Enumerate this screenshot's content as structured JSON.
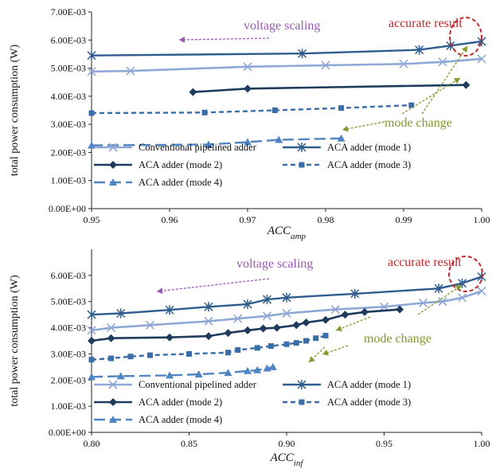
{
  "colors": {
    "conventional": "#8fa8d6",
    "mode1": "#2f5d8e",
    "mode2": "#1e3a5c",
    "mode3": "#3a6ea8",
    "mode4": "#4f85c2",
    "voltage_scaling": "#9b59b6",
    "accurate_result": "#c0282d",
    "mode_change": "#7f9a2e"
  },
  "chart_data": [
    {
      "type": "line",
      "xlabel": "ACC",
      "xlabel_sub": "amp",
      "ylabel": "total power consumption (W)",
      "xlim": [
        0.95,
        1.0
      ],
      "ylim": [
        0,
        0.007
      ],
      "xticks": [
        0.95,
        0.96,
        0.97,
        0.98,
        0.99,
        1.0
      ],
      "xtick_labels": [
        "0.95",
        "0.96",
        "0.97",
        "0.98",
        "0.99",
        "1.00"
      ],
      "yticks": [
        0,
        0.001,
        0.002,
        0.003,
        0.004,
        0.005,
        0.006,
        0.007
      ],
      "ytick_labels": [
        "0.00E+00",
        "1.00E-03",
        "2.00E-03",
        "3.00E-03",
        "4.00E-03",
        "5.00E-03",
        "6.00E-03",
        "7.00E-03"
      ],
      "grid": false,
      "annotations": {
        "voltage_scaling": "voltage scaling",
        "accurate_result": "accurate result",
        "mode_change": "mode change"
      },
      "series": [
        {
          "key": "conventional",
          "name": "Conventional pipelined adder",
          "marker": "x",
          "dash": "solid",
          "x": [
            0.95,
            0.955,
            0.97,
            0.98,
            0.99,
            0.995,
            1.0
          ],
          "y": [
            0.00488,
            0.0049,
            0.00505,
            0.0051,
            0.00515,
            0.00522,
            0.00533
          ]
        },
        {
          "key": "mode1",
          "name": "ACA adder (mode 1)",
          "marker": "star",
          "dash": "solid",
          "x": [
            0.95,
            0.977,
            0.992,
            0.996,
            1.0
          ],
          "y": [
            0.00545,
            0.00552,
            0.00565,
            0.0058,
            0.00595
          ]
        },
        {
          "key": "mode2",
          "name": "ACA adder (mode 2)",
          "marker": "diamond",
          "dash": "solid",
          "x": [
            0.963,
            0.97,
            0.998
          ],
          "y": [
            0.00415,
            0.00427,
            0.0044
          ]
        },
        {
          "key": "mode3",
          "name": "ACA adder (mode 3)",
          "marker": "square",
          "dash": "dash",
          "x": [
            0.95,
            0.9645,
            0.9735,
            0.982,
            0.991
          ],
          "y": [
            0.0034,
            0.00342,
            0.0035,
            0.00358,
            0.00368
          ]
        },
        {
          "key": "mode4",
          "name": "ACA adder (mode 4)",
          "marker": "triangle",
          "dash": "longdash",
          "x": [
            0.95,
            0.965,
            0.97,
            0.974,
            0.982
          ],
          "y": [
            0.00225,
            0.00228,
            0.00237,
            0.00245,
            0.0025
          ]
        }
      ]
    },
    {
      "type": "line",
      "xlabel": "ACC",
      "xlabel_sub": "inf",
      "ylabel": "total power consumption (W)",
      "xlim": [
        0.8,
        1.0
      ],
      "ylim": [
        0,
        0.007
      ],
      "xticks": [
        0.8,
        0.85,
        0.9,
        0.95,
        1.0
      ],
      "xtick_labels": [
        "0.80",
        "0.85",
        "0.90",
        "0.95",
        "1.00"
      ],
      "yticks": [
        0,
        0.001,
        0.002,
        0.003,
        0.004,
        0.005,
        0.006
      ],
      "ytick_labels": [
        "0.00E+00",
        "1.00E-03",
        "2.00E-03",
        "3.00E-03",
        "4.00E-03",
        "5.00E-03",
        "6.00E-03"
      ],
      "grid": false,
      "annotations": {
        "voltage_scaling": "voltage scaling",
        "accurate_result": "accurate result",
        "mode_change": "mode change"
      },
      "series": [
        {
          "key": "conventional",
          "name": "Conventional pipelined adder",
          "marker": "x",
          "dash": "solid",
          "x": [
            0.8,
            0.81,
            0.83,
            0.86,
            0.875,
            0.89,
            0.9,
            0.925,
            0.95,
            0.97,
            0.98,
            0.99,
            1.0
          ],
          "y": [
            0.0039,
            0.004,
            0.0041,
            0.00425,
            0.00435,
            0.00445,
            0.00455,
            0.0047,
            0.0048,
            0.00495,
            0.005,
            0.00515,
            0.0054
          ]
        },
        {
          "key": "mode1",
          "name": "ACA adder (mode 1)",
          "marker": "star",
          "dash": "solid",
          "x": [
            0.8,
            0.815,
            0.84,
            0.86,
            0.88,
            0.89,
            0.9,
            0.935,
            0.978,
            0.99,
            1.0
          ],
          "y": [
            0.0045,
            0.00455,
            0.00468,
            0.0048,
            0.0049,
            0.00508,
            0.00515,
            0.0053,
            0.0055,
            0.0057,
            0.00595
          ]
        },
        {
          "key": "mode2",
          "name": "ACA adder (mode 2)",
          "marker": "diamond",
          "dash": "solid",
          "x": [
            0.8,
            0.81,
            0.84,
            0.86,
            0.87,
            0.88,
            0.888,
            0.895,
            0.905,
            0.91,
            0.92,
            0.93,
            0.94,
            0.958
          ],
          "y": [
            0.0035,
            0.0036,
            0.00363,
            0.00368,
            0.0038,
            0.0039,
            0.00397,
            0.004,
            0.0041,
            0.0042,
            0.0043,
            0.0045,
            0.0046,
            0.0047
          ]
        },
        {
          "key": "mode3",
          "name": "ACA adder (mode 3)",
          "marker": "square",
          "dash": "dash",
          "x": [
            0.8,
            0.81,
            0.82,
            0.83,
            0.85,
            0.87,
            0.875,
            0.885,
            0.892,
            0.9,
            0.905,
            0.91,
            0.915,
            0.92
          ],
          "y": [
            0.00278,
            0.00283,
            0.0029,
            0.00295,
            0.003,
            0.00305,
            0.00315,
            0.00323,
            0.0033,
            0.00337,
            0.00342,
            0.0035,
            0.0036,
            0.0037
          ]
        },
        {
          "key": "mode4",
          "name": "ACA adder (mode 4)",
          "marker": "triangle",
          "dash": "longdash",
          "x": [
            0.8,
            0.815,
            0.84,
            0.855,
            0.87,
            0.88,
            0.885,
            0.89,
            0.893
          ],
          "y": [
            0.00212,
            0.00215,
            0.00218,
            0.00222,
            0.00228,
            0.00235,
            0.00238,
            0.00245,
            0.0025
          ]
        }
      ]
    }
  ]
}
